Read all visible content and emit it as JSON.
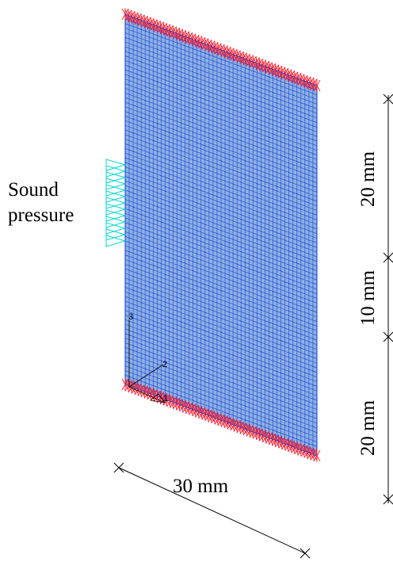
{
  "annotations": {
    "load": [
      "Sound",
      "pressure"
    ],
    "width": "30 mm",
    "heights": [
      "20 mm",
      "10 mm",
      "20 mm"
    ],
    "axes": [
      "1",
      "2",
      "3"
    ]
  }
}
